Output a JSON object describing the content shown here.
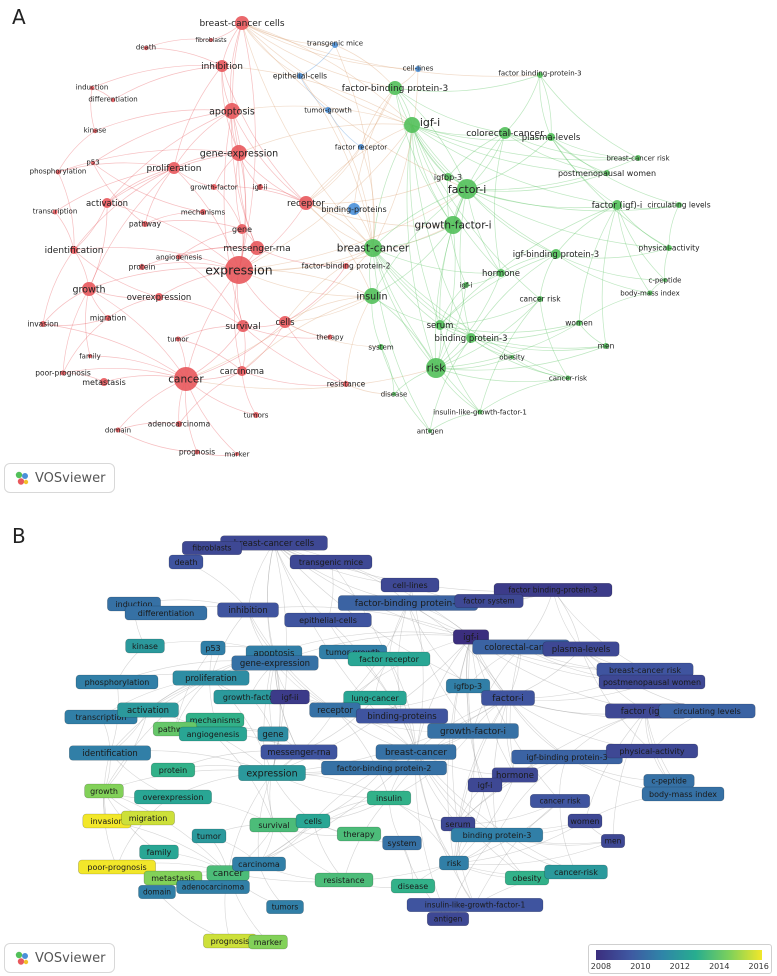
{
  "panels": {
    "a_letter": "A",
    "b_letter": "B"
  },
  "logo_text": "VOSviewer",
  "colorbar": {
    "ticks": [
      "2008",
      "2010",
      "2012",
      "2014",
      "2016"
    ],
    "colors": [
      "#3b2e7e",
      "#3f57a1",
      "#2f85a8",
      "#27ad8f",
      "#7bd05c",
      "#f2e72a"
    ]
  },
  "clusters": {
    "red": "#e8585c",
    "green": "#52c05a",
    "blue": "#4a90d9"
  },
  "chart_data": {
    "type": "network",
    "panel_a_mode": "cluster",
    "panel_b_mode": "overlay",
    "overlay_range": [
      2008,
      2016
    ],
    "nodes": [
      {
        "label": "breast-cancer cells",
        "cluster": "red",
        "year": 2009.0
      },
      {
        "label": "death",
        "cluster": "red",
        "year": 2009.5
      },
      {
        "label": "fibroblasts",
        "cluster": "red",
        "year": 2009.0
      },
      {
        "label": "transgenic mice",
        "cluster": "blue",
        "year": 2009.0
      },
      {
        "label": "cell-lines",
        "cluster": "blue",
        "year": 2009.0
      },
      {
        "label": "factor binding-protein-3",
        "cluster": "green",
        "year": 2008.5
      },
      {
        "label": "induction",
        "cluster": "red",
        "year": 2010.5
      },
      {
        "label": "inhibition",
        "cluster": "red",
        "year": 2009.5
      },
      {
        "label": "differentiation",
        "cluster": "red",
        "year": 2010.5
      },
      {
        "label": "epithelial-cells",
        "cluster": "blue",
        "year": 2009.5
      },
      {
        "label": "factor-binding protein-3",
        "cluster": "green",
        "year": 2010.0
      },
      {
        "label": "factor system",
        "cluster": "blue",
        "year": 2009.0
      },
      {
        "label": "kinase",
        "cluster": "red",
        "year": 2012.0
      },
      {
        "label": "apoptosis",
        "cluster": "red",
        "year": 2011.0
      },
      {
        "label": "tumor-growth",
        "cluster": "blue",
        "year": 2011.0
      },
      {
        "label": "p53",
        "cluster": "red",
        "year": 2011.0
      },
      {
        "label": "igf-i",
        "cluster": "green",
        "year": 2008.0
      },
      {
        "label": "colorectal-cancer",
        "cluster": "green",
        "year": 2010.0
      },
      {
        "label": "plasma-levels",
        "cluster": "green",
        "year": 2009.0
      },
      {
        "label": "factor receptor",
        "cluster": "blue",
        "year": 2012.5
      },
      {
        "label": "gene-expression",
        "cluster": "red",
        "year": 2010.5
      },
      {
        "label": "breast-cancer risk",
        "cluster": "green",
        "year": 2009.5
      },
      {
        "label": "phosphorylation",
        "cluster": "red",
        "year": 2011.0
      },
      {
        "label": "proliferation",
        "cluster": "red",
        "year": 2011.5
      },
      {
        "label": "postmenopausal women",
        "cluster": "green",
        "year": 2009.0
      },
      {
        "label": "igfbp-3",
        "cluster": "green",
        "year": 2011.0
      },
      {
        "label": "growth-factor",
        "cluster": "red",
        "year": 2012.0
      },
      {
        "label": "igf-ii",
        "cluster": "red",
        "year": 2008.5
      },
      {
        "label": "lung-cancer",
        "cluster": "blue",
        "year": 2012.5
      },
      {
        "label": "factor-i",
        "cluster": "green",
        "year": 2009.5
      },
      {
        "label": "transcription",
        "cluster": "red",
        "year": 2011.0
      },
      {
        "label": "activation",
        "cluster": "red",
        "year": 2012.0
      },
      {
        "label": "mechanisms",
        "cluster": "red",
        "year": 2013.0
      },
      {
        "label": "factor (igf)-i",
        "cluster": "green",
        "year": 2009.0
      },
      {
        "label": "circulating levels",
        "cluster": "green",
        "year": 2010.0
      },
      {
        "label": "pathway",
        "cluster": "red",
        "year": 2014.0
      },
      {
        "label": "receptor",
        "cluster": "red",
        "year": 2010.5
      },
      {
        "label": "binding-proteins",
        "cluster": "blue",
        "year": 2009.5
      },
      {
        "label": "growth-factor-i",
        "cluster": "green",
        "year": 2010.5
      },
      {
        "label": "identification",
        "cluster": "red",
        "year": 2011.0
      },
      {
        "label": "gene",
        "cluster": "red",
        "year": 2011.5
      },
      {
        "label": "messenger-rna",
        "cluster": "red",
        "year": 2009.5
      },
      {
        "label": "breast-cancer",
        "cluster": "green",
        "year": 2010.5
      },
      {
        "label": "igf-binding protein-3",
        "cluster": "green",
        "year": 2010.0
      },
      {
        "label": "physical-activity",
        "cluster": "green",
        "year": 2009.0
      },
      {
        "label": "angiogenesis",
        "cluster": "red",
        "year": 2012.5
      },
      {
        "label": "protein",
        "cluster": "red",
        "year": 2013.0
      },
      {
        "label": "expression",
        "cluster": "red",
        "year": 2012.0
      },
      {
        "label": "factor-binding protein-2",
        "cluster": "red",
        "year": 2010.5
      },
      {
        "label": "hormone",
        "cluster": "green",
        "year": 2009.0
      },
      {
        "label": "c-peptide",
        "cluster": "green",
        "year": 2010.5
      },
      {
        "label": "igf-i",
        "cluster": "green",
        "year": 2009.0
      },
      {
        "label": "body-mass index",
        "cluster": "green",
        "year": 2010.5
      },
      {
        "label": "cancer risk",
        "cluster": "green",
        "year": 2009.5
      },
      {
        "label": "growth",
        "cluster": "red",
        "year": 2014.5
      },
      {
        "label": "overexpression",
        "cluster": "red",
        "year": 2012.5
      },
      {
        "label": "insulin",
        "cluster": "green",
        "year": 2013.0
      },
      {
        "label": "invasion",
        "cluster": "red",
        "year": 2016.0
      },
      {
        "label": "migration",
        "cluster": "red",
        "year": 2015.5
      },
      {
        "label": "survival",
        "cluster": "red",
        "year": 2013.5
      },
      {
        "label": "cells",
        "cluster": "red",
        "year": 2012.5
      },
      {
        "label": "therapy",
        "cluster": "red",
        "year": 2013.5
      },
      {
        "label": "serum",
        "cluster": "green",
        "year": 2009.0
      },
      {
        "label": "women",
        "cluster": "green",
        "year": 2009.0
      },
      {
        "label": "tumor",
        "cluster": "red",
        "year": 2012.0
      },
      {
        "label": "system",
        "cluster": "green",
        "year": 2010.5
      },
      {
        "label": "binding protein-3",
        "cluster": "green",
        "year": 2011.0
      },
      {
        "label": "men",
        "cluster": "green",
        "year": 2009.0
      },
      {
        "label": "family",
        "cluster": "red",
        "year": 2012.5
      },
      {
        "label": "poor-prognosis",
        "cluster": "red",
        "year": 2016.0
      },
      {
        "label": "metastasis",
        "cluster": "red",
        "year": 2014.5
      },
      {
        "label": "cancer",
        "cluster": "red",
        "year": 2013.5
      },
      {
        "label": "carcinoma",
        "cluster": "red",
        "year": 2011.0
      },
      {
        "label": "risk",
        "cluster": "green",
        "year": 2011.0
      },
      {
        "label": "obesity",
        "cluster": "green",
        "year": 2013.0
      },
      {
        "label": "cancer-risk",
        "cluster": "green",
        "year": 2012.0
      },
      {
        "label": "resistance",
        "cluster": "red",
        "year": 2013.5
      },
      {
        "label": "disease",
        "cluster": "green",
        "year": 2013.0
      },
      {
        "label": "domain",
        "cluster": "red",
        "year": 2011.0
      },
      {
        "label": "adenocarcinoma",
        "cluster": "red",
        "year": 2011.0
      },
      {
        "label": "tumors",
        "cluster": "red",
        "year": 2011.0
      },
      {
        "label": "insulin-like-growth-factor-1",
        "cluster": "green",
        "year": 2009.5
      },
      {
        "label": "antigen",
        "cluster": "green",
        "year": 2009.0
      },
      {
        "label": "prognosis",
        "cluster": "red",
        "year": 2015.5
      },
      {
        "label": "marker",
        "cluster": "red",
        "year": 2014.5
      }
    ]
  }
}
